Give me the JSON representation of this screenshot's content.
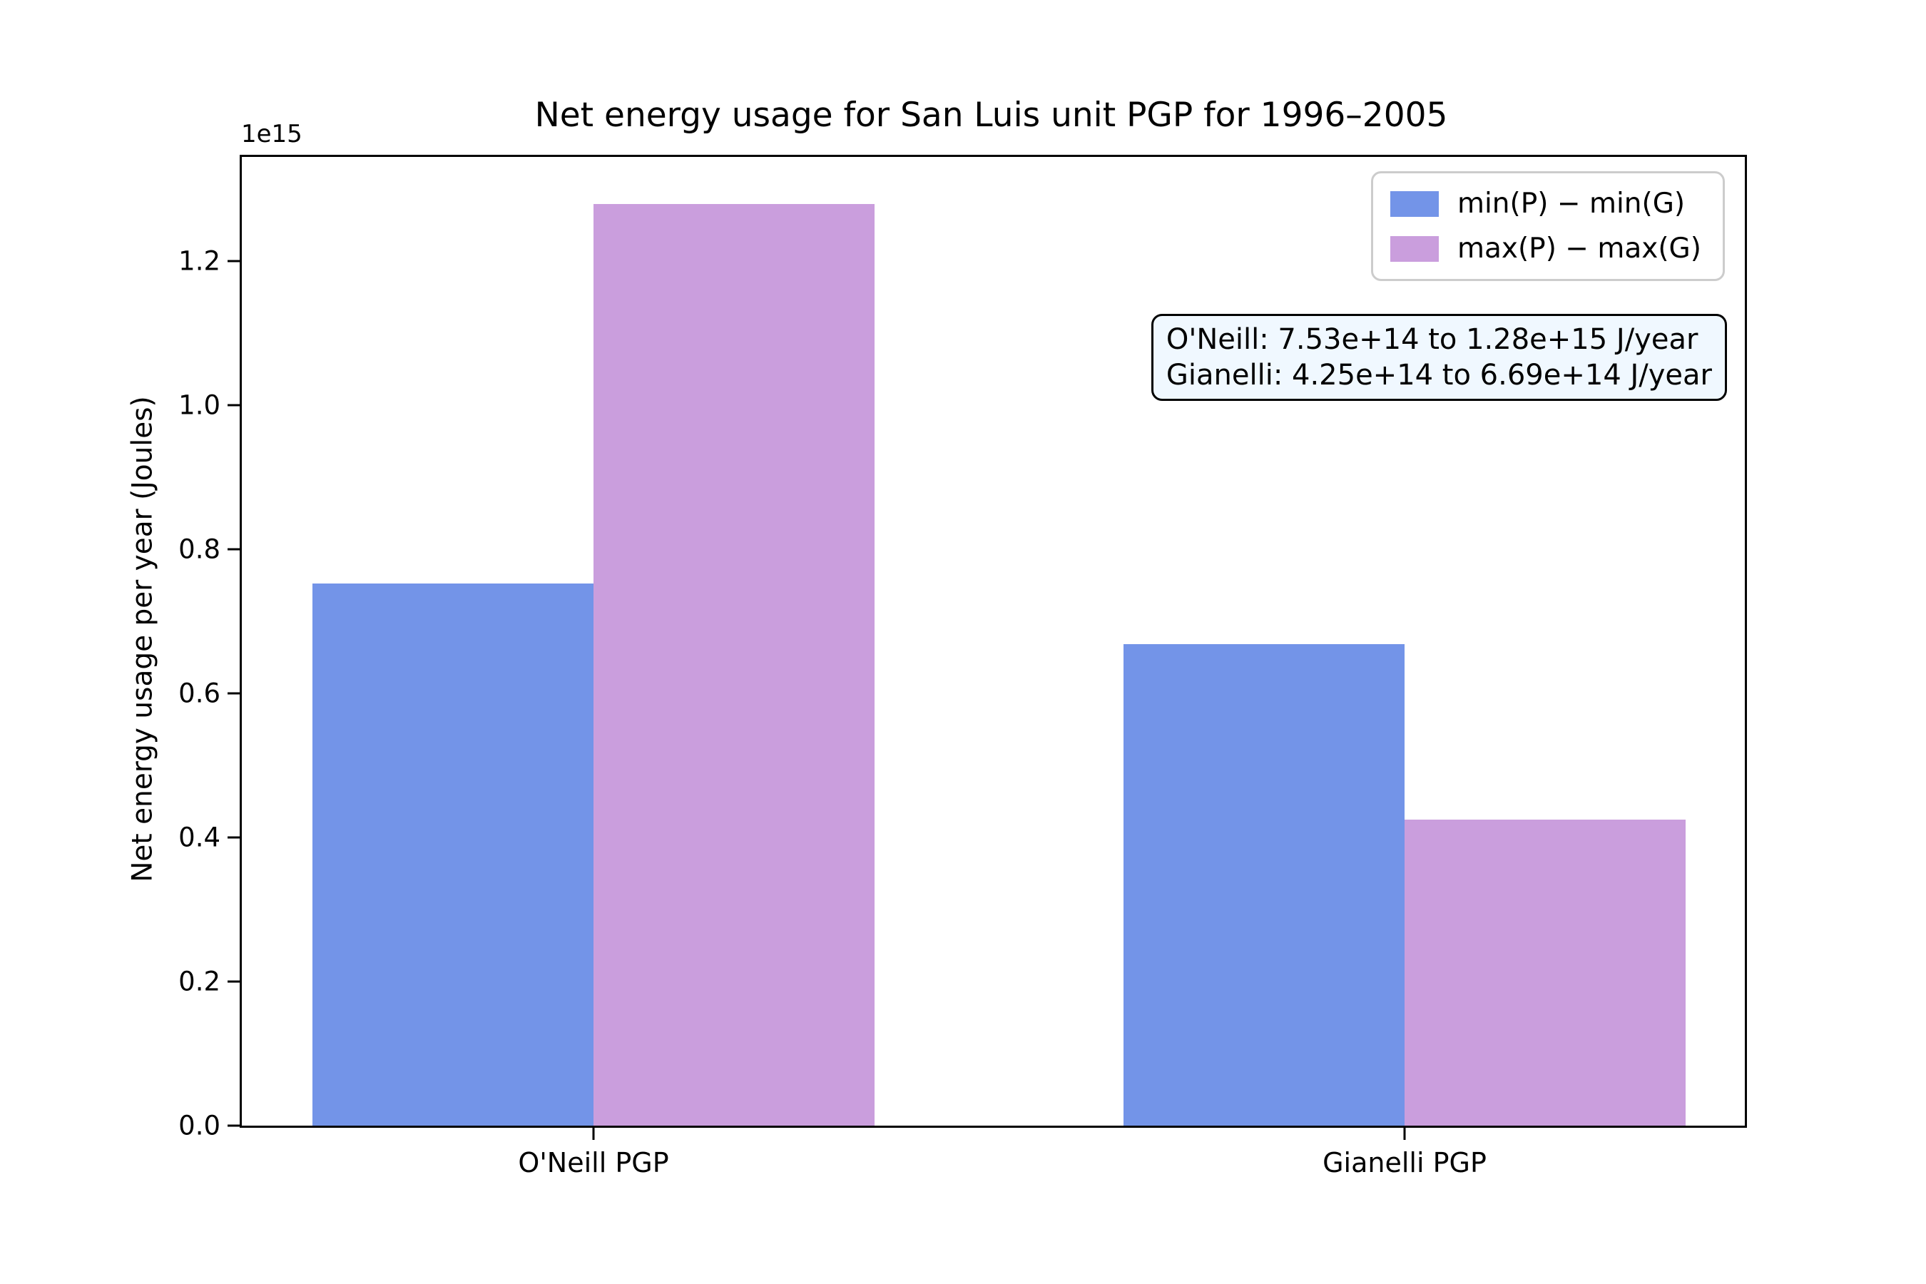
{
  "chart_data": {
    "type": "bar",
    "title": "Net energy usage for San Luis unit PGP for 1996–2005",
    "xlabel": "",
    "ylabel": "Net energy usage per year (Joules)",
    "y_scale_offset_label": "1e15",
    "categories": [
      "O'Neill PGP",
      "Gianelli PGP"
    ],
    "series": [
      {
        "name": "min(P) − min(G)",
        "color": "#7394e8",
        "values": [
          753000000000000.0,
          669000000000000.0
        ]
      },
      {
        "name": "max(P) − max(G)",
        "color": "#ca9edd",
        "values": [
          1280000000000000.0,
          425000000000000.0
        ]
      }
    ],
    "ylim": [
      0,
      1345000000000000.0
    ],
    "yticks": [
      {
        "label": "0.0",
        "value": 0
      },
      {
        "label": "0.2",
        "value": 200000000000000.0
      },
      {
        "label": "0.4",
        "value": 400000000000000.0
      },
      {
        "label": "0.6",
        "value": 600000000000000.0
      },
      {
        "label": "0.8",
        "value": 800000000000000.0
      },
      {
        "label": "1.0",
        "value": 1000000000000000.0
      },
      {
        "label": "1.2",
        "value": 1200000000000000.0
      }
    ],
    "grid": false,
    "legend_position": "upper right",
    "annotation": {
      "lines": [
        "O'Neill: 7.53e+14 to 1.28e+15 J/year",
        "Gianelli: 4.25e+14 to 6.69e+14 J/year"
      ],
      "background_color": "#f0f8ff",
      "border_color": "#000000"
    }
  }
}
